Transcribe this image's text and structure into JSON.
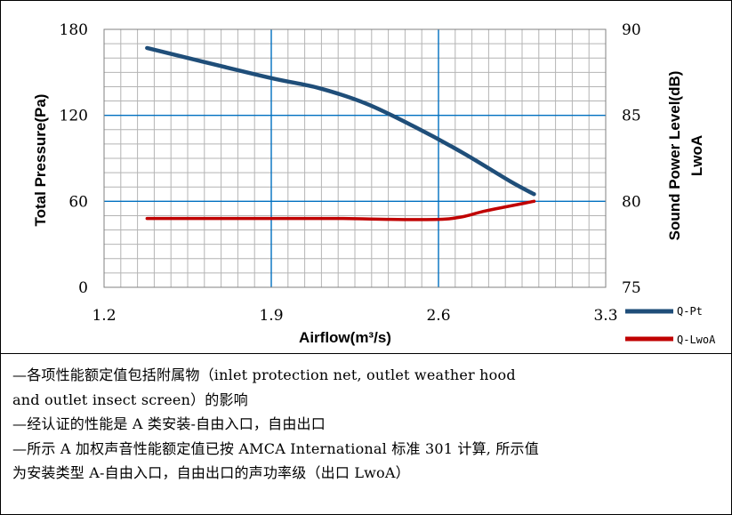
{
  "chart_data": {
    "type": "line",
    "xlabel": "Airflow(m³/s)",
    "ylabel_left": "Total Pressure(Pa)",
    "ylabel_right_line1": "Sound Power Level(dB)",
    "ylabel_right_line2": "LwoA",
    "xlim": [
      1.2,
      3.3
    ],
    "ylim_left": [
      0,
      180
    ],
    "ylim_right": [
      75,
      90
    ],
    "x_ticks": [
      "1.2",
      "1.9",
      "2.6",
      "3.3"
    ],
    "y_left_ticks": [
      "0",
      "60",
      "120",
      "180"
    ],
    "y_right_ticks": [
      "75",
      "80",
      "85",
      "90"
    ],
    "grid": true,
    "legend_position": "right-bottom",
    "series": [
      {
        "name": "Q-Pt",
        "axis": "left",
        "color": "#1f4e79",
        "x": [
          1.38,
          1.6,
          1.9,
          2.1,
          2.3,
          2.5,
          2.7,
          2.9,
          3.0
        ],
        "y": [
          167,
          158,
          146,
          139,
          128,
          112,
          94,
          74,
          65
        ]
      },
      {
        "name": "Q-LwoA",
        "axis": "right",
        "color": "#c00000",
        "x": [
          1.38,
          1.6,
          1.9,
          2.2,
          2.4,
          2.6,
          2.7,
          2.8,
          3.0
        ],
        "y": [
          79.0,
          79.0,
          79.0,
          79.0,
          78.95,
          78.95,
          79.1,
          79.45,
          80.0
        ]
      }
    ]
  },
  "notes": [
    "—各项性能额定值包括附属物（inlet protection net, outlet weather hood",
    "and outlet insect screen）的影响",
    "—经认证的性能是 A 类安装-自由入口，自由出口",
    "—所示 A 加权声音性能额定值已按 AMCA International 标准 301 计算, 所示值",
    "为安装类型 A-自由入口，自由出口的声功率级（出口 LwoA）"
  ]
}
